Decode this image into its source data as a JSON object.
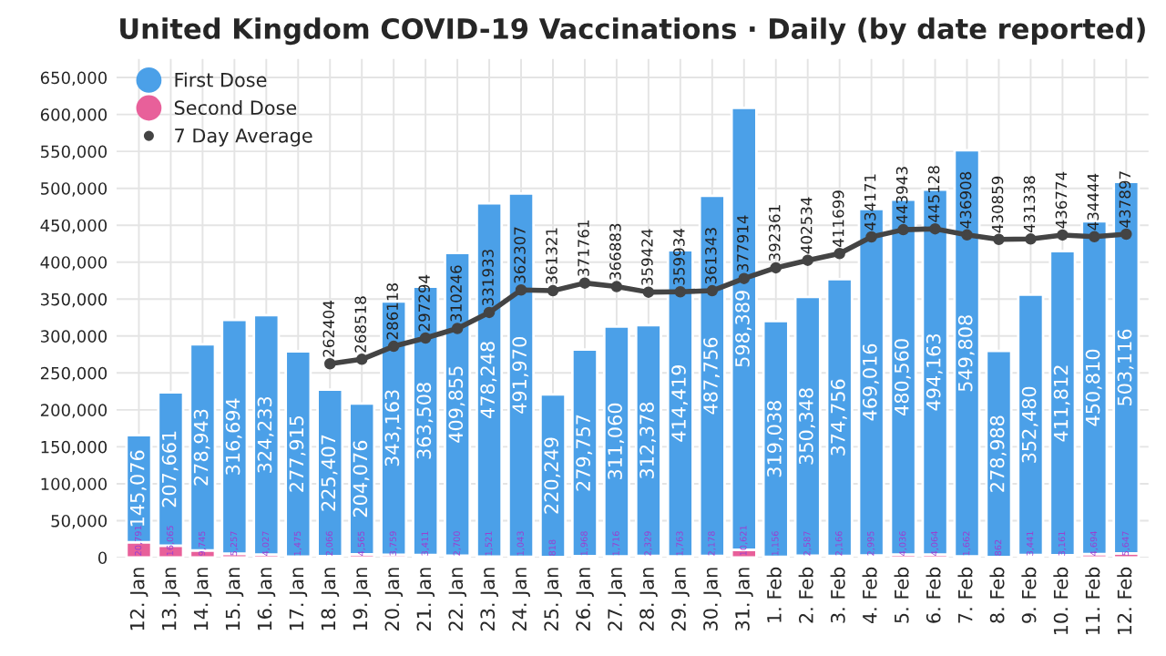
{
  "chart_data": {
    "type": "bar",
    "title": "United Kingdom COVID-19 Vaccinations · Daily (by date reported)",
    "categories": [
      "12. Jan",
      "13. Jan",
      "14. Jan",
      "15. Jan",
      "16. Jan",
      "17. Jan",
      "18. Jan",
      "19. Jan",
      "20. Jan",
      "21. Jan",
      "22. Jan",
      "23. Jan",
      "24. Jan",
      "25. Jan",
      "26. Jan",
      "27. Jan",
      "28. Jan",
      "29. Jan",
      "30. Jan",
      "31. Jan",
      "1. Feb",
      "2. Feb",
      "3. Feb",
      "4. Feb",
      "5. Feb",
      "6. Feb",
      "7. Feb",
      "8. Feb",
      "9. Feb",
      "10. Feb",
      "11. Feb",
      "12. Feb"
    ],
    "stacked": true,
    "series": [
      {
        "name": "Second Dose",
        "color": "#e8609a",
        "values": [
          20791,
          16065,
          9745,
          5257,
          4027,
          1475,
          2066,
          4565,
          3759,
          3411,
          2700,
          1521,
          1043,
          818,
          1968,
          1716,
          2329,
          1763,
          2178,
          10621,
          1156,
          2587,
          2166,
          2995,
          4036,
          4064,
          1662,
          862,
          3441,
          3161,
          4694,
          5647
        ],
        "value_labels": [
          "20,791",
          "16,065",
          "9,745",
          "5,257",
          "4,027",
          "1,475",
          "2,066",
          "4,565",
          "3,759",
          "3,411",
          "2,700",
          "1,521",
          "1,043",
          "818",
          "1,968",
          "1,716",
          "2,329",
          "1,763",
          "2,178",
          "10,621",
          "1,156",
          "2,587",
          "2,166",
          "2,995",
          "4,036",
          "4,064",
          "1,662",
          "862",
          "3,441",
          "3,161",
          "4,694",
          "5,647"
        ]
      },
      {
        "name": "First Dose",
        "color": "#4ba0e8",
        "values": [
          145076,
          207661,
          278943,
          316694,
          324233,
          277915,
          225407,
          204076,
          343163,
          363508,
          409855,
          478248,
          491970,
          220249,
          279757,
          311060,
          312378,
          414419,
          487756,
          598389,
          319038,
          350348,
          374756,
          469016,
          480560,
          494163,
          549808,
          278988,
          352480,
          411812,
          450810,
          503116
        ],
        "value_labels": [
          "145,076",
          "207,661",
          "278,943",
          "316,694",
          "324,233",
          "277,915",
          "225,407",
          "204,076",
          "343,163",
          "363,508",
          "409,855",
          "478,248",
          "491,970",
          "220,249",
          "279,757",
          "311,060",
          "312,378",
          "414,419",
          "487,756",
          "598,389",
          "319,038",
          "350,348",
          "374,756",
          "469,016",
          "480,560",
          "494,163",
          "549,808",
          "278,988",
          "352,480",
          "411,812",
          "450,810",
          "503,116"
        ]
      },
      {
        "name": "7 Day Average",
        "type": "line",
        "color": "#444444",
        "marker": "circle",
        "values": [
          null,
          null,
          null,
          null,
          null,
          null,
          262404,
          268518,
          286118,
          297294,
          310246,
          331933,
          362307,
          361321,
          371761,
          366883,
          359424,
          359934,
          361343,
          377914,
          392361,
          402534,
          411699,
          434171,
          443943,
          445128,
          436908,
          430859,
          431338,
          436774,
          434444,
          437897
        ],
        "value_labels": [
          null,
          null,
          null,
          null,
          null,
          null,
          "262404",
          "268518",
          "286118",
          "297294",
          "310246",
          "331933",
          "362307",
          "361321",
          "371761",
          "366883",
          "359424",
          "359934",
          "361343",
          "377914",
          "392361",
          "402534",
          "411699",
          "434171",
          "443943",
          "445128",
          "436908",
          "430859",
          "431338",
          "436774",
          "434444",
          "437897"
        ]
      }
    ],
    "ylim": [
      0,
      675000
    ],
    "yticks": [
      {
        "value": 0,
        "label": "0"
      },
      {
        "value": 50000,
        "label": "50,000"
      },
      {
        "value": 100000,
        "label": "100,000"
      },
      {
        "value": 150000,
        "label": "150,000"
      },
      {
        "value": 200000,
        "label": "200,000"
      },
      {
        "value": 250000,
        "label": "250,000"
      },
      {
        "value": 300000,
        "label": "300,000"
      },
      {
        "value": 350000,
        "label": "350,000"
      },
      {
        "value": 400000,
        "label": "400,000"
      },
      {
        "value": 450000,
        "label": "450,000"
      },
      {
        "value": 500000,
        "label": "500,000"
      },
      {
        "value": 550000,
        "label": "550,000"
      },
      {
        "value": 600000,
        "label": "600,000"
      },
      {
        "value": 650000,
        "label": "650,000"
      }
    ],
    "grid": true,
    "legend": "top left"
  }
}
